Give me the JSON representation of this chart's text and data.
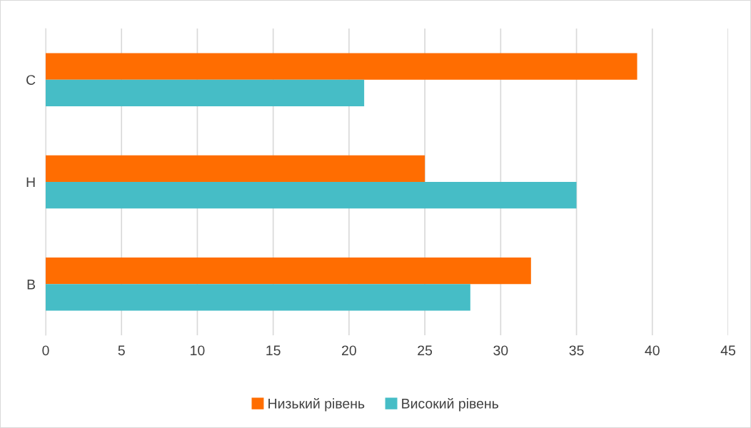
{
  "chart_data": {
    "type": "bar",
    "orientation": "horizontal",
    "categories": [
      "С",
      "Н",
      "В"
    ],
    "series": [
      {
        "name": "Низький рівень",
        "color": "#ff6d01",
        "values": [
          39,
          25,
          32
        ]
      },
      {
        "name": "Високий рівень",
        "color": "#46bdc6",
        "values": [
          21,
          35,
          28
        ]
      }
    ],
    "xlim": [
      0,
      45
    ],
    "xticks": [
      0,
      5,
      10,
      15,
      20,
      25,
      30,
      35,
      40,
      45
    ],
    "grid": "x",
    "legend": "bottom"
  }
}
